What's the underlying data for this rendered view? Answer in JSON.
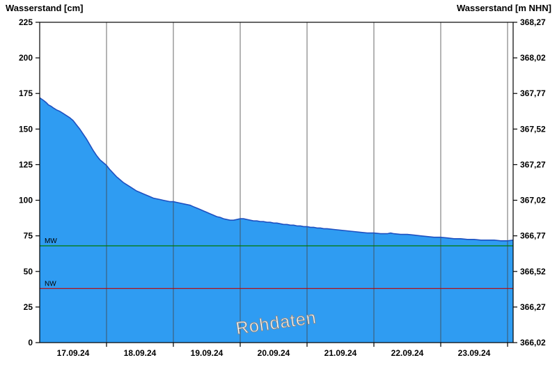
{
  "watermark": "Rohdaten",
  "chart_data": {
    "type": "area",
    "title": "",
    "x_unit": "days",
    "x_range": [
      0,
      7.083
    ],
    "x_gridlines_days": [
      1,
      2,
      3,
      4,
      5,
      6,
      7
    ],
    "x_tick_labels": [
      {
        "pos": 0.5,
        "label": "17.09.24"
      },
      {
        "pos": 1.5,
        "label": "18.09.24"
      },
      {
        "pos": 2.5,
        "label": "19.09.24"
      },
      {
        "pos": 3.5,
        "label": "20.09.24"
      },
      {
        "pos": 4.5,
        "label": "21.09.24"
      },
      {
        "pos": 5.5,
        "label": "22.09.24"
      },
      {
        "pos": 6.5,
        "label": "23.09.24"
      }
    ],
    "y_left": {
      "label": "Wasserstand [cm]",
      "min": 0,
      "max": 225,
      "tick_step": 25,
      "tick_labels": [
        "0",
        "25",
        "50",
        "75",
        "100",
        "125",
        "150",
        "175",
        "200",
        "225"
      ]
    },
    "y_right": {
      "label": "Wasserstand [m NHN]",
      "tick_labels": [
        "366,02",
        "366,27",
        "366,52",
        "366,77",
        "367,02",
        "367,27",
        "367,52",
        "367,77",
        "368,02",
        "368,27"
      ]
    },
    "grid": "vertical-only",
    "legend": "none",
    "series": [
      {
        "name": "Wasserstand Rohdaten",
        "x": [
          0,
          0.03,
          0.06,
          0.1,
          0.13,
          0.17,
          0.2,
          0.25,
          0.3,
          0.35,
          0.4,
          0.45,
          0.5,
          0.55,
          0.6,
          0.65,
          0.7,
          0.75,
          0.8,
          0.85,
          0.9,
          0.95,
          1,
          1.05,
          1.1,
          1.15,
          1.2,
          1.25,
          1.3,
          1.35,
          1.4,
          1.45,
          1.5,
          1.55,
          1.6,
          1.65,
          1.7,
          1.75,
          1.8,
          1.85,
          1.9,
          1.95,
          2,
          2.05,
          2.1,
          2.15,
          2.2,
          2.25,
          2.3,
          2.35,
          2.4,
          2.45,
          2.5,
          2.55,
          2.6,
          2.65,
          2.7,
          2.75,
          2.8,
          2.85,
          2.9,
          2.95,
          3,
          3.05,
          3.1,
          3.15,
          3.2,
          3.25,
          3.3,
          3.35,
          3.4,
          3.45,
          3.5,
          3.55,
          3.6,
          3.65,
          3.7,
          3.75,
          3.8,
          3.85,
          3.9,
          3.95,
          4,
          4.05,
          4.1,
          4.15,
          4.2,
          4.25,
          4.3,
          4.4,
          4.5,
          4.6,
          4.7,
          4.8,
          4.9,
          5,
          5.1,
          5.2,
          5.25,
          5.3,
          5.4,
          5.5,
          5.6,
          5.7,
          5.8,
          5.9,
          6,
          6.1,
          6.2,
          6.3,
          6.4,
          6.5,
          6.6,
          6.7,
          6.8,
          6.9,
          7,
          7.083
        ],
        "y": [
          172,
          171,
          170,
          168.5,
          167,
          166,
          165,
          163.5,
          162.5,
          161,
          159.5,
          158,
          156,
          153,
          150,
          146.5,
          143,
          139,
          135,
          131.5,
          128.5,
          126.5,
          124.5,
          121.5,
          119,
          116.5,
          114.5,
          112.5,
          111,
          109.5,
          108,
          106.5,
          105.5,
          104.5,
          103.5,
          102.5,
          101.5,
          101,
          100.5,
          100,
          99.5,
          99,
          99,
          98.5,
          98,
          97.5,
          97,
          96.5,
          95.5,
          94.5,
          93.5,
          92.5,
          91.5,
          90.5,
          89.5,
          88.5,
          88,
          87,
          86.5,
          86,
          86,
          86.5,
          87,
          87,
          86.5,
          86,
          85.5,
          85.5,
          85,
          85,
          84.5,
          84.5,
          84,
          84,
          83.5,
          83,
          83,
          82.5,
          82.5,
          82,
          82,
          81.5,
          81.5,
          81,
          81,
          80.5,
          80.5,
          80,
          80,
          79.5,
          79,
          78.5,
          78,
          77.5,
          77,
          77,
          76.5,
          76.5,
          77,
          76.5,
          76,
          76,
          75.5,
          75,
          74.5,
          74,
          74,
          73.5,
          73,
          73,
          72.5,
          72.5,
          72,
          72,
          72,
          71.5,
          71.5,
          72
        ]
      }
    ],
    "reference_lines": [
      {
        "name": "MW",
        "value": 68,
        "color": "#007a00"
      },
      {
        "name": "NW",
        "value": 38,
        "color": "#c00000"
      }
    ],
    "colors": {
      "fill": "#2f9cf2",
      "line": "#1e50c0",
      "grid": "#444444",
      "border": "#000000",
      "text": "#000000",
      "watermark_fill": "#ffffff",
      "watermark_stroke": "#8a8a8a"
    }
  }
}
